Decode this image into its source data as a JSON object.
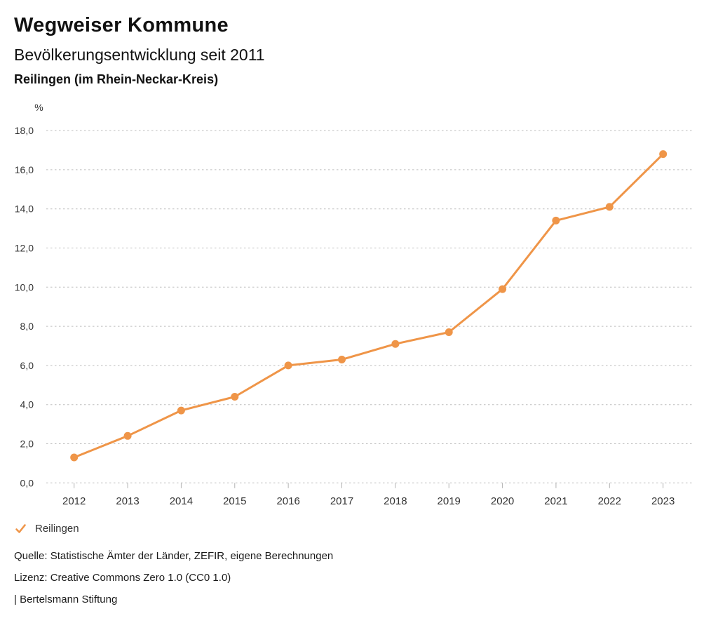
{
  "header": {
    "title": "Wegweiser Kommune",
    "subtitle": "Bevölkerungsentwicklung seit 2011",
    "region": "Reilingen (im Rhein-Neckar-Kreis)"
  },
  "chart_data": {
    "type": "line",
    "title": "Bevölkerungsentwicklung seit 2011",
    "unit_label": "%",
    "x": [
      2012,
      2013,
      2014,
      2015,
      2016,
      2017,
      2018,
      2019,
      2020,
      2021,
      2022,
      2023
    ],
    "series": [
      {
        "name": "Reilingen",
        "color": "#EF9548",
        "values": [
          1.3,
          2.4,
          3.7,
          4.4,
          6.0,
          6.3,
          7.1,
          7.7,
          9.9,
          13.4,
          14.1,
          16.8
        ]
      }
    ],
    "ylim": [
      0,
      18
    ],
    "ytick_step": 2,
    "ytick_labels": [
      "0,0",
      "2,0",
      "4,0",
      "6,0",
      "8,0",
      "10,0",
      "12,0",
      "14,0",
      "16,0",
      "18,0"
    ],
    "grid": "horizontal-dotted",
    "legend_position": "bottom-left"
  },
  "legend": {
    "items": [
      {
        "label": "Reilingen",
        "color": "#EF9548",
        "checked": true
      }
    ]
  },
  "footer": {
    "source": "Quelle: Statistische Ämter der Länder, ZEFIR, eigene Berechnungen",
    "license": "Lizenz: Creative Commons Zero 1.0 (CC0 1.0)",
    "attribution": "| Bertelsmann Stiftung"
  },
  "colors": {
    "accent": "#EF9548",
    "grid": "#BDBDBD",
    "tick": "#B3B3B3",
    "axis_text": "#333333",
    "text": "#1A1A1A"
  }
}
